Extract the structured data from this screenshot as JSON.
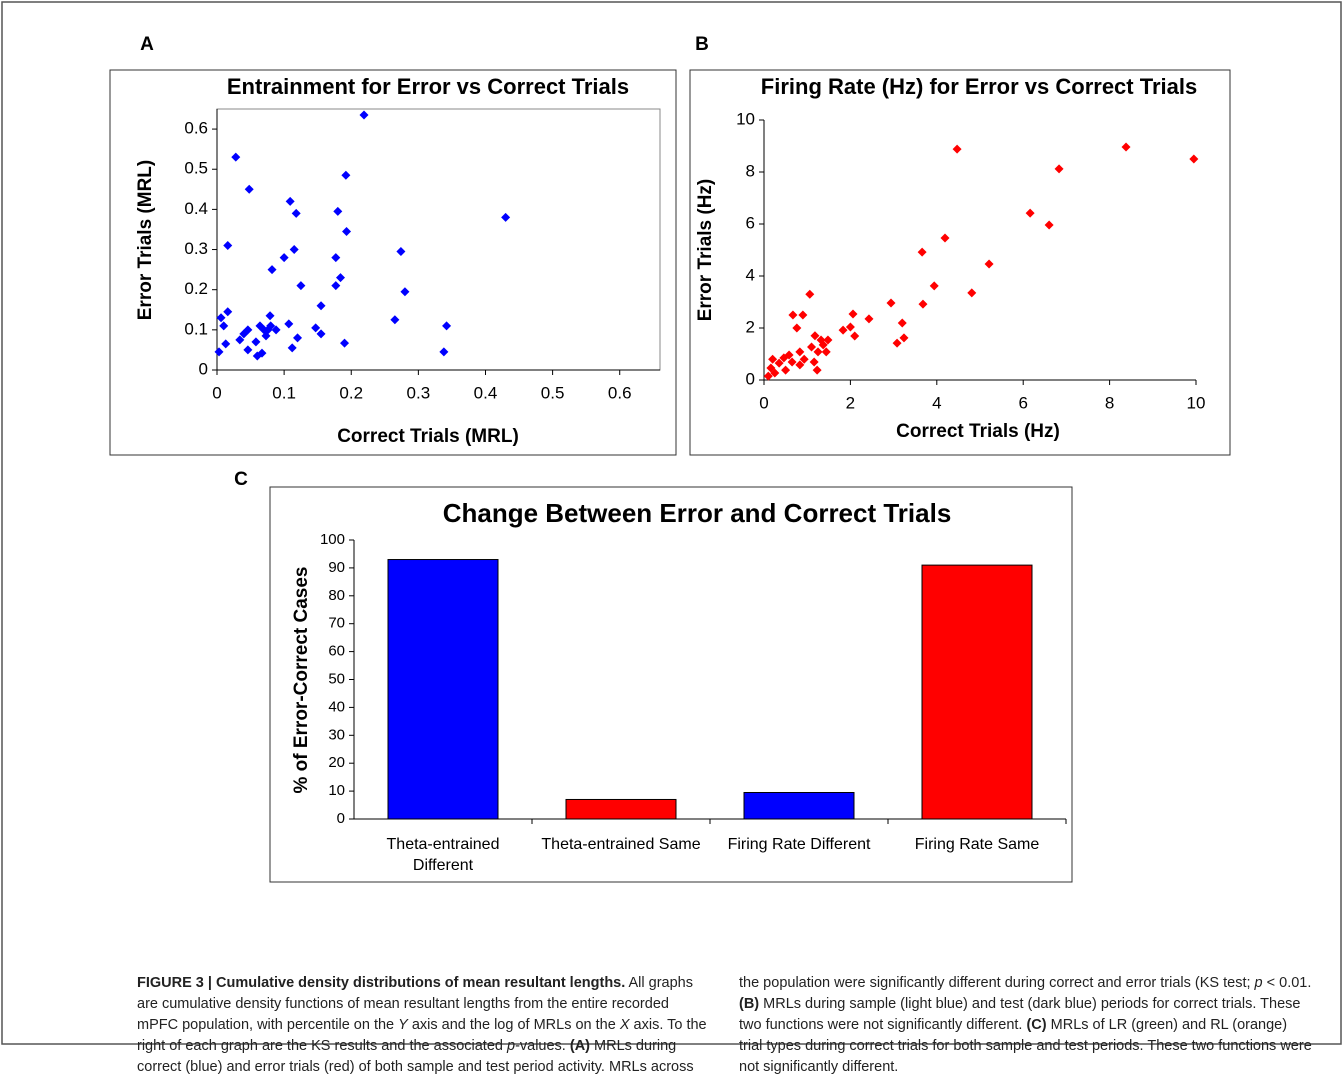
{
  "chart_data": [
    {
      "type": "scatter",
      "panel": "A",
      "title": "Entrainment for Error vs Correct Trials",
      "xlabel": "Correct Trials (MRL)",
      "ylabel": "Error Trials (MRL)",
      "color": "#0000ff",
      "x": [
        0.003,
        0.006,
        0.01,
        0.016,
        0.016,
        0.013,
        0.028,
        0.034,
        0.04,
        0.046,
        0.048,
        0.046,
        0.06,
        0.058,
        0.064,
        0.067,
        0.07,
        0.073,
        0.076,
        0.079,
        0.08,
        0.082,
        0.088,
        0.1,
        0.107,
        0.109,
        0.115,
        0.112,
        0.118,
        0.12,
        0.125,
        0.147,
        0.155,
        0.155,
        0.177,
        0.177,
        0.18,
        0.184,
        0.19,
        0.193,
        0.192,
        0.219,
        0.265,
        0.274,
        0.28,
        0.338,
        0.342,
        0.43
      ],
      "y": [
        0.045,
        0.13,
        0.11,
        0.145,
        0.31,
        0.065,
        0.53,
        0.075,
        0.09,
        0.1,
        0.45,
        0.05,
        0.035,
        0.07,
        0.11,
        0.042,
        0.1,
        0.085,
        0.1,
        0.135,
        0.11,
        0.25,
        0.1,
        0.28,
        0.115,
        0.42,
        0.3,
        0.055,
        0.39,
        0.08,
        0.21,
        0.105,
        0.16,
        0.09,
        0.21,
        0.28,
        0.395,
        0.23,
        0.067,
        0.345,
        0.485,
        0.635,
        0.125,
        0.295,
        0.195,
        0.045,
        0.11,
        0.38
      ],
      "xlim": [
        0,
        0.66
      ],
      "ylim": [
        0,
        0.65
      ],
      "xticks": [
        0,
        0.1,
        0.2,
        0.3,
        0.4,
        0.5,
        0.6
      ],
      "yticks": [
        0,
        0.1,
        0.2,
        0.3,
        0.4,
        0.5,
        0.6
      ]
    },
    {
      "type": "scatter",
      "panel": "B",
      "title": "Firing Rate (Hz) for Error vs Correct Trials",
      "xlabel": "Correct Trials (Hz)",
      "ylabel": "Error Trials (Hz)",
      "color": "#ff0000",
      "x": [
        0.1,
        0.16,
        0.2,
        0.25,
        0.35,
        0.46,
        0.5,
        0.58,
        0.65,
        0.67,
        0.76,
        0.83,
        0.83,
        0.9,
        0.93,
        1.06,
        1.1,
        1.16,
        1.18,
        1.23,
        1.25,
        1.32,
        1.37,
        1.44,
        1.48,
        1.83,
        2.0,
        2.06,
        2.1,
        2.43,
        2.94,
        3.08,
        3.2,
        3.24,
        3.66,
        3.68,
        3.94,
        4.19,
        4.47,
        4.81,
        5.21,
        6.16,
        6.6,
        6.83,
        8.38,
        9.95
      ],
      "y": [
        0.15,
        0.46,
        0.8,
        0.27,
        0.65,
        0.85,
        0.38,
        0.96,
        0.69,
        2.5,
        2.0,
        0.58,
        1.08,
        2.5,
        0.8,
        3.3,
        1.27,
        0.69,
        1.7,
        0.38,
        1.08,
        1.54,
        1.35,
        1.08,
        1.54,
        1.92,
        2.04,
        2.54,
        1.69,
        2.35,
        2.96,
        1.42,
        2.19,
        1.62,
        4.92,
        2.92,
        3.62,
        5.46,
        8.88,
        3.35,
        4.46,
        6.42,
        5.96,
        8.12,
        8.96,
        8.5
      ],
      "xlim": [
        0,
        10
      ],
      "ylim": [
        0,
        10
      ],
      "xticks": [
        0,
        2,
        4,
        6,
        8,
        10
      ],
      "yticks": [
        0,
        2,
        4,
        6,
        8,
        10
      ]
    },
    {
      "type": "bar",
      "panel": "C",
      "title": "Change Between Error and Correct Trials",
      "ylabel": "% of Error-Correct Cases",
      "categories": [
        "Theta-entrained Different",
        "Theta-entrained Same",
        "Firing Rate Different",
        "Firing Rate Same"
      ],
      "values": [
        93,
        7,
        9.5,
        91
      ],
      "colors": [
        "#0000ff",
        "#ff0000",
        "#0000ff",
        "#ff0000"
      ],
      "ylim": [
        0,
        100
      ],
      "yticks": [
        0,
        10,
        20,
        30,
        40,
        50,
        60,
        70,
        80,
        90,
        100
      ]
    }
  ],
  "caption": [
    {
      "text": "FIGURE 3 | Cumulative density distributions of mean resultant lengths.",
      "style": "bold"
    },
    {
      "text": " All graphs are cumulative density functions of mean resultant lengths from the entire recorded mPFC population, with percentile on the ",
      "style": "normal"
    },
    {
      "text": "Y",
      "style": "italic"
    },
    {
      "text": " axis and the log of MRLs on the ",
      "style": "normal"
    },
    {
      "text": "X",
      "style": "italic"
    },
    {
      "text": " axis. To the right of each graph are the KS results and the associated ",
      "style": "normal"
    },
    {
      "text": "p",
      "style": "italic"
    },
    {
      "text": "-values. ",
      "style": "normal"
    },
    {
      "text": "(A)",
      "style": "bold"
    },
    {
      "text": " MRLs during correct (blue) and error trials (red) of both sample and test period activity. MRLs across the population were significantly different during correct and error trials (KS test; ",
      "style": "normal"
    },
    {
      "text": "p",
      "style": "italic"
    },
    {
      "text": " < 0.01. ",
      "style": "normal"
    },
    {
      "text": "(B)",
      "style": "bold"
    },
    {
      "text": " MRLs during sample (light blue) and test (dark blue) periods for correct trials. These two functions were not significantly different. ",
      "style": "normal"
    },
    {
      "text": "(C)",
      "style": "bold"
    },
    {
      "text": " MRLs of LR (green) and RL (orange) trial types during correct trials for both sample and test periods. These two functions were not significantly different.",
      "style": "normal"
    }
  ]
}
